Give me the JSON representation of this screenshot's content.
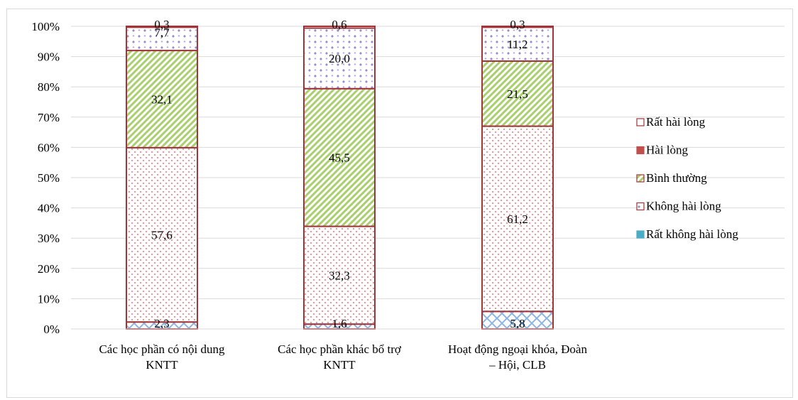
{
  "chart_data": {
    "type": "bar",
    "stacked": true,
    "percent": true,
    "title": "",
    "xlabel": "",
    "ylabel": "",
    "ylim": [
      0,
      100
    ],
    "ytick_step": 10,
    "ytick_suffix": "%",
    "grid": true,
    "legend_position": "right",
    "categories": [
      [
        "Các học phần có nội dung",
        "KNTT"
      ],
      [
        "Các học phần khác bổ trợ",
        "KNTT"
      ],
      [
        "Hoạt động ngoại khóa, Đoàn",
        "– Hội, CLB"
      ]
    ],
    "series": [
      {
        "name": "Rất không hài lòng",
        "values": [
          2.3,
          1.6,
          5.8
        ],
        "labels": [
          "2,3",
          "1,6",
          "5,8"
        ],
        "color": "#8eb4e3",
        "pattern": "crosshatch"
      },
      {
        "name": "Hài lòng",
        "values": [
          57.6,
          32.3,
          61.2
        ],
        "labels": [
          "57,6",
          "32,3",
          "61,2"
        ],
        "color": "#f4a6a6",
        "pattern": "dots"
      },
      {
        "name": "Bình thường",
        "values": [
          32.1,
          45.5,
          21.5
        ],
        "labels": [
          "32,1",
          "45,5",
          "21,5"
        ],
        "color": "#a9cf6e",
        "pattern": "diagonal"
      },
      {
        "name": "Không hài lòng",
        "values": [
          7.7,
          20.0,
          11.2
        ],
        "labels": [
          "7,7",
          "20,0",
          "11,2"
        ],
        "color": "#a99bd6",
        "pattern": "diamonds"
      },
      {
        "name": "Rất hài lòng",
        "values": [
          0.3,
          0.6,
          0.3
        ],
        "labels": [
          "0,3",
          "0,6",
          "0,3"
        ],
        "color": "#ffffff",
        "pattern": "none"
      }
    ],
    "legend": [
      {
        "name": "Rất hài lòng",
        "color": "#ffffff",
        "pattern": "none"
      },
      {
        "name": "Hài lòng",
        "color": "#c0504d",
        "pattern": "solid"
      },
      {
        "name": "Bình thường",
        "color": "#a9cf6e",
        "pattern": "diagonal"
      },
      {
        "name": "Không hài lòng",
        "color": "#a99bd6",
        "pattern": "diamonds"
      },
      {
        "name": "Rất không hài lòng",
        "color": "#4bacc6",
        "pattern": "solid"
      }
    ],
    "bar_border_color": "#a0353a"
  }
}
